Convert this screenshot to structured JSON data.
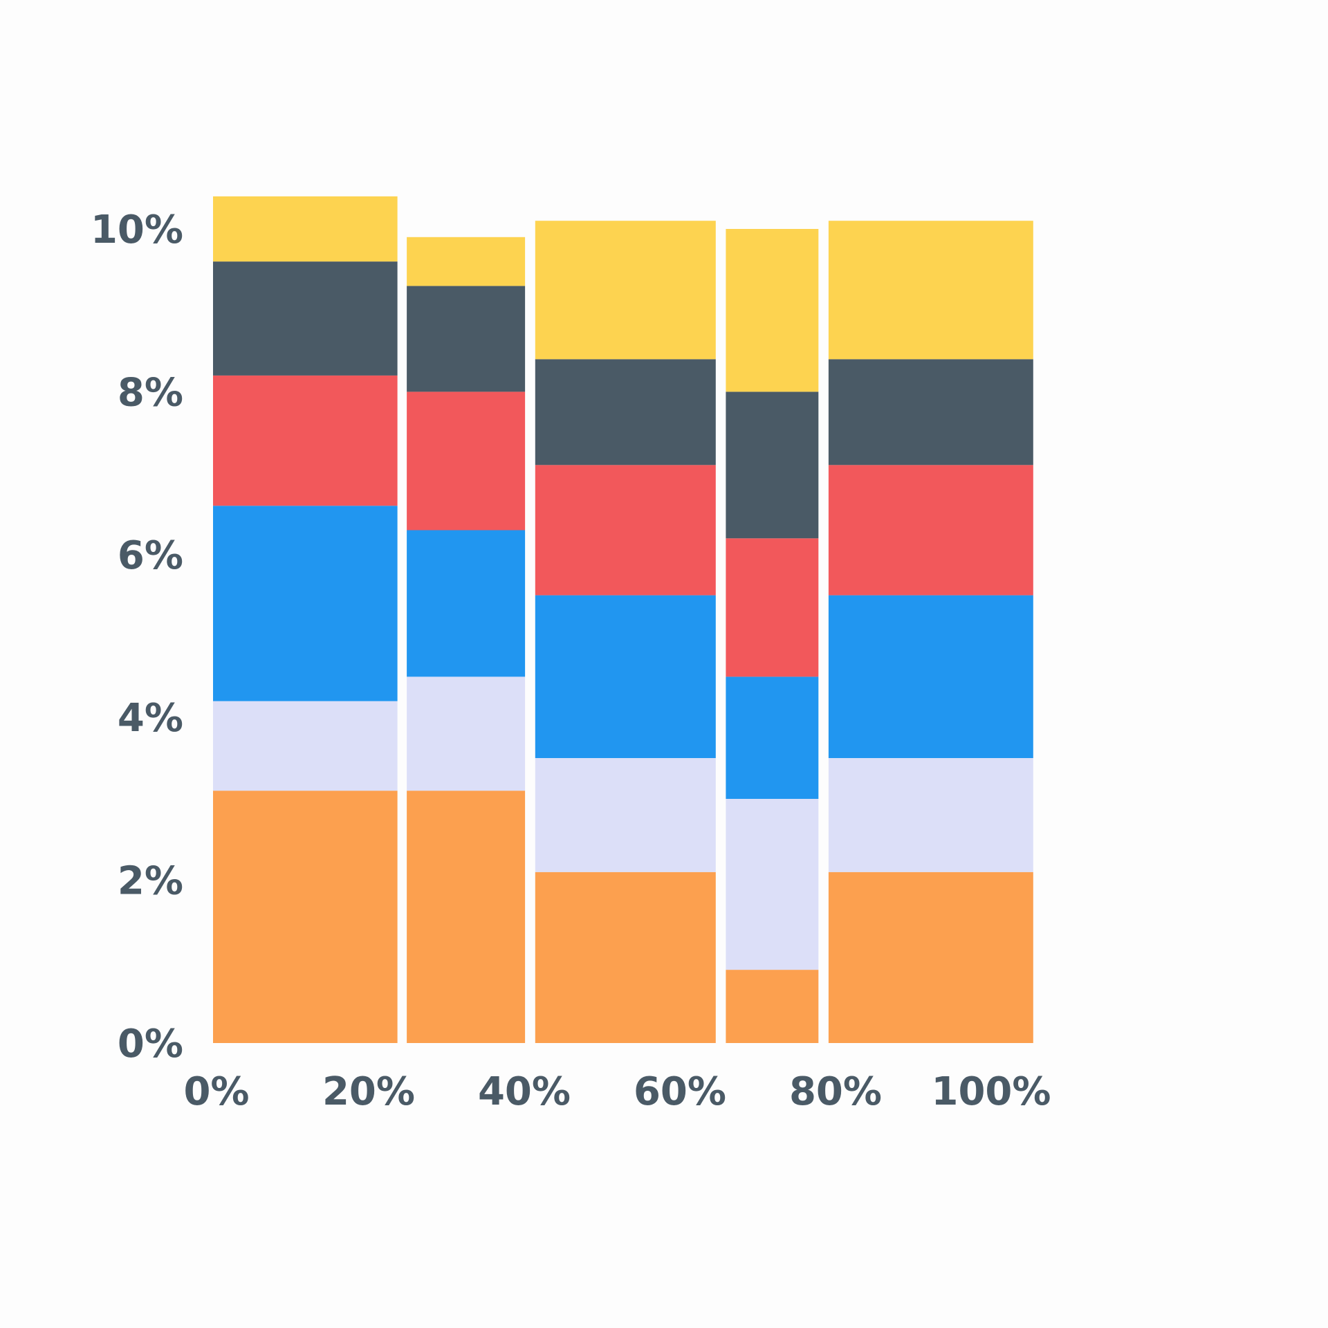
{
  "chart_data": {
    "type": "bar",
    "subtype": "marimekko",
    "title": "",
    "xlabel": "",
    "ylabel": "",
    "xlim": [
      0,
      100
    ],
    "ylim": [
      0,
      10
    ],
    "grid": false,
    "legend": "none",
    "x_ticks": [
      "0%",
      "20%",
      "40%",
      "60%",
      "80%",
      "100%"
    ],
    "y_ticks": [
      "0%",
      "2%",
      "4%",
      "6%",
      "8%",
      "10%"
    ],
    "series_colors": [
      "#fca04f",
      "#dcdff8",
      "#2196f0",
      "#f2585b",
      "#4a5a66",
      "#fdd350"
    ],
    "columns": [
      {
        "x_start": 0.0,
        "x_end": 23.7,
        "segments": [
          3.1,
          1.1,
          2.4,
          1.6,
          1.4,
          0.8
        ]
      },
      {
        "x_start": 24.9,
        "x_end": 40.1,
        "segments": [
          3.1,
          1.4,
          1.8,
          1.7,
          1.3,
          0.6
        ]
      },
      {
        "x_start": 41.4,
        "x_end": 64.6,
        "segments": [
          2.1,
          1.4,
          2.0,
          1.6,
          1.3,
          1.7
        ]
      },
      {
        "x_start": 65.9,
        "x_end": 77.8,
        "segments": [
          0.9,
          2.1,
          1.5,
          1.7,
          1.8,
          2.0
        ]
      },
      {
        "x_start": 79.1,
        "x_end": 105.4,
        "segments": [
          2.1,
          1.4,
          2.0,
          1.6,
          1.3,
          1.7
        ]
      }
    ]
  }
}
